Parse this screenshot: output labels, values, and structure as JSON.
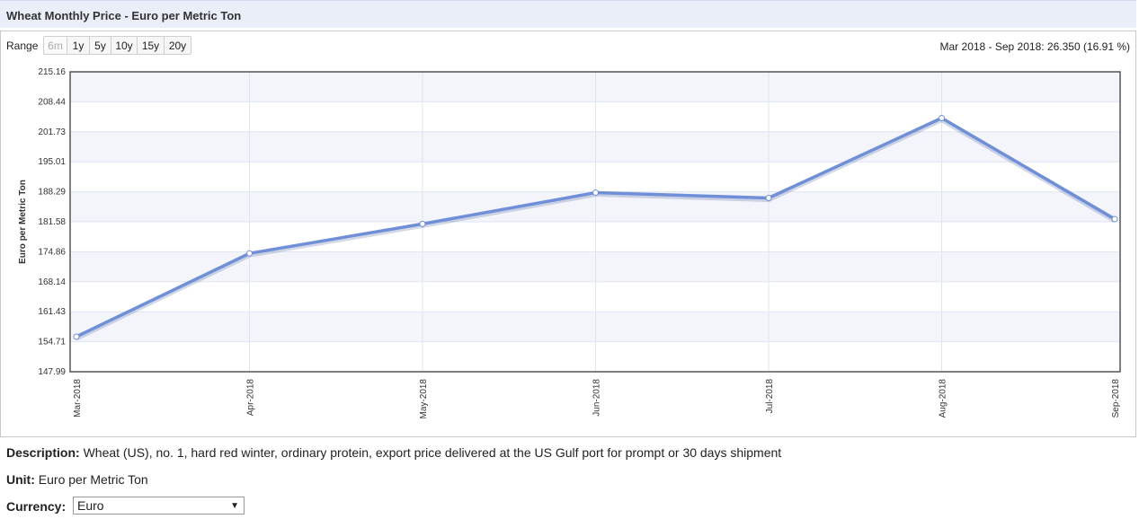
{
  "header": {
    "title": "Wheat Monthly Price - Euro per Metric Ton"
  },
  "range": {
    "label": "Range",
    "options": [
      "6m",
      "1y",
      "5y",
      "10y",
      "15y",
      "20y"
    ],
    "active": "6m",
    "summary": "Mar 2018 - Sep 2018: 26.350 (16.91 %)"
  },
  "chart_data": {
    "type": "line",
    "ylabel": "Euro per Metric Ton",
    "xlabel": "",
    "ylim": [
      147.99,
      215.16
    ],
    "yticks": [
      "215.16",
      "208.44",
      "201.73",
      "195.01",
      "188.29",
      "181.58",
      "174.86",
      "168.14",
      "161.43",
      "154.71",
      "147.99"
    ],
    "categories": [
      "Mar-2018",
      "Apr-2018",
      "May-2018",
      "Jun-2018",
      "Jul-2018",
      "Aug-2018",
      "Sep-2018"
    ],
    "series": [
      {
        "values": [
          155.84,
          174.5,
          181.1,
          188.1,
          186.9,
          204.8,
          182.19
        ]
      }
    ],
    "grid": true,
    "line_color": "#6f8fd8"
  },
  "description": {
    "label": "Description:",
    "text": "Wheat (US), no. 1, hard red winter, ordinary protein, export price delivered at the US Gulf port for prompt or 30 days shipment"
  },
  "unit": {
    "label": "Unit:",
    "text": "Euro per Metric Ton"
  },
  "currency": {
    "label": "Currency:",
    "selected": "Euro",
    "arrow": "▼"
  }
}
